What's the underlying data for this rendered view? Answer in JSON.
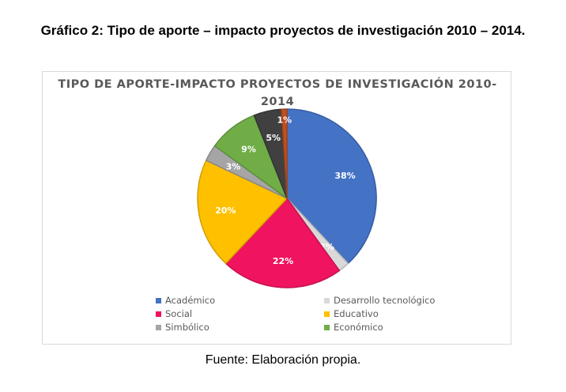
{
  "figure": {
    "title": "Gráfico 2: Tipo de aporte – impacto proyectos de investigación 2010 – 2014.",
    "source": "Fuente: Elaboración propia."
  },
  "chart_data": {
    "type": "pie",
    "title": "TIPO DE APORTE-IMPACTO PROYECTOS DE INVESTIGACIÓN 2010-2014",
    "legend_position": "bottom",
    "slices": [
      {
        "label": "Académico",
        "value": 38,
        "display": "38%",
        "color": "#4472C4"
      },
      {
        "label": "Desarrollo tecnológico",
        "value": 2,
        "display": "2%",
        "color": "#D9D9D9"
      },
      {
        "label": "Social",
        "value": 22,
        "display": "22%",
        "color": "#F0135F"
      },
      {
        "label": "Educativo",
        "value": 20,
        "display": "20%",
        "color": "#FFC000"
      },
      {
        "label": "Simbólico",
        "value": 3,
        "display": "3%",
        "color": "#A5A5A5"
      },
      {
        "label": "Económico",
        "value": 9,
        "display": "9%",
        "color": "#70AD47"
      },
      {
        "label": "",
        "value": 5,
        "display": "5%",
        "color": "#404040"
      },
      {
        "label": "",
        "value": 1,
        "display": "1%",
        "color": "#C0501F"
      }
    ]
  }
}
